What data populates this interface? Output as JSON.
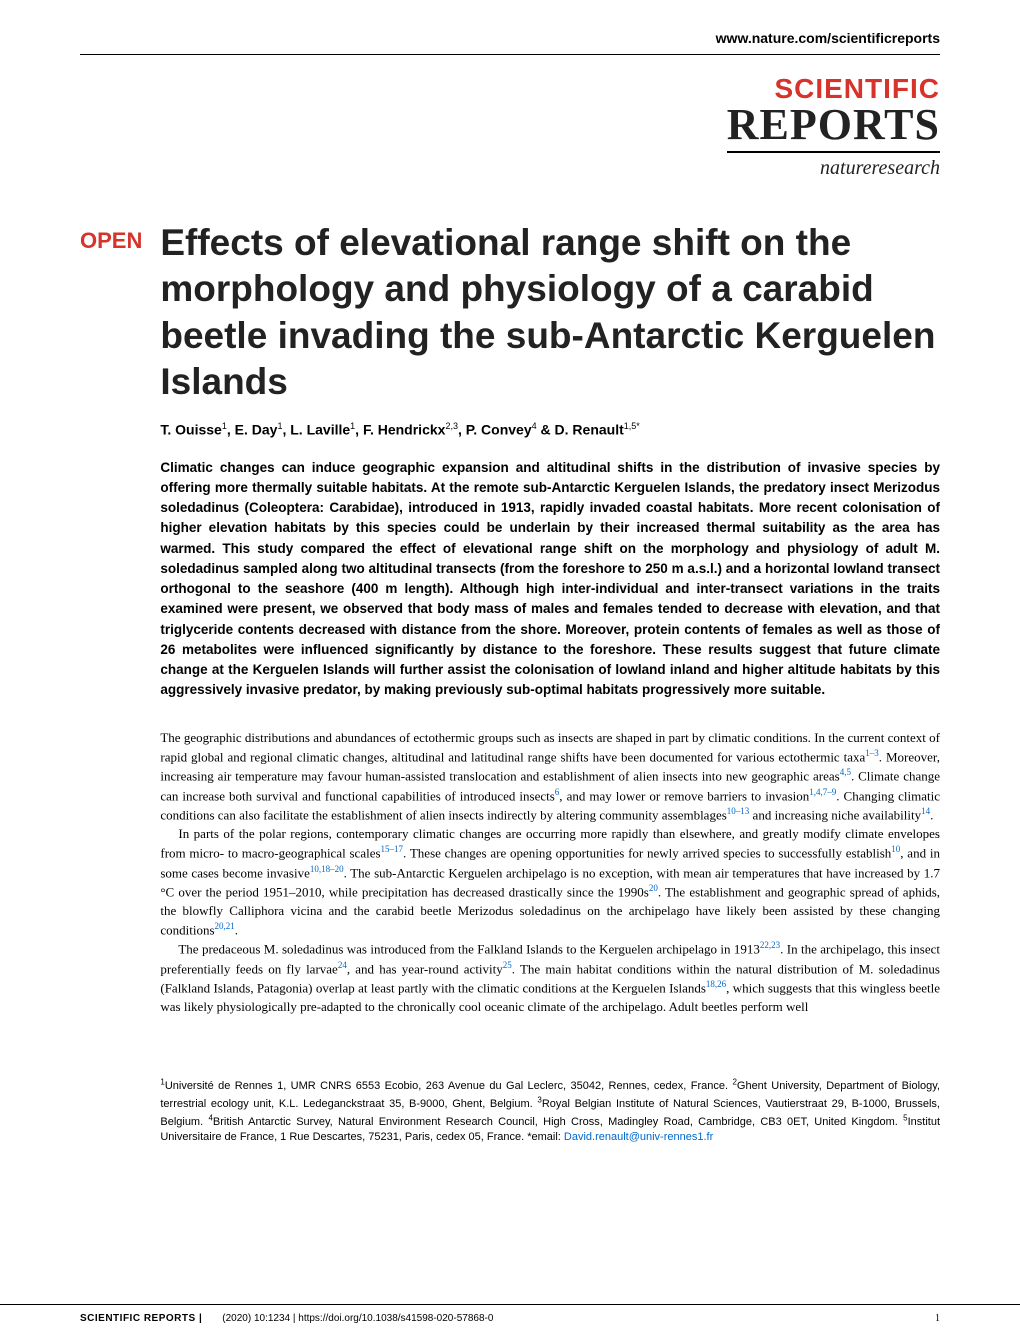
{
  "header": {
    "url": "www.nature.com/scientificreports",
    "logo_scientific": "SCIENTIFIC",
    "logo_reports": "REPORTS",
    "logo_nature": "natureresearch"
  },
  "article": {
    "open_badge": "OPEN",
    "title": "Effects of elevational range shift on the morphology and physiology of a carabid beetle invading the sub-Antarctic Kerguelen Islands",
    "authors_html": "T. Ouisse<sup>1</sup>, E. Day<sup>1</sup>, L. Laville<sup>1</sup>, F. Hendrickx<sup>2,3</sup>, P. Convey<sup>4</sup> & D. Renault<sup>1,5*</sup>",
    "abstract": "Climatic changes can induce geographic expansion and altitudinal shifts in the distribution of invasive species by offering more thermally suitable habitats. At the remote sub-Antarctic Kerguelen Islands, the predatory insect Merizodus soledadinus (Coleoptera: Carabidae), introduced in 1913, rapidly invaded coastal habitats. More recent colonisation of higher elevation habitats by this species could be underlain by their increased thermal suitability as the area has warmed. This study compared the effect of elevational range shift on the morphology and physiology of adult M. soledadinus sampled along two altitudinal transects (from the foreshore to 250 m a.s.l.) and a horizontal lowland transect orthogonal to the seashore (400 m length). Although high inter-individual and inter-transect variations in the traits examined were present, we observed that body mass of males and females tended to decrease with elevation, and that triglyceride contents decreased with distance from the shore. Moreover, protein contents of females as well as those of 26 metabolites were influenced significantly by distance to the foreshore. These results suggest that future climate change at the Kerguelen Islands will further assist the colonisation of lowland inland and higher altitude habitats by this aggressively invasive predator, by making previously sub-optimal habitats progressively more suitable."
  },
  "body_paragraphs": [
    "The geographic distributions and abundances of ectothermic groups such as insects are shaped in part by climatic conditions. In the current context of rapid global and regional climatic changes, altitudinal and latitudinal range shifts have been documented for various ectothermic taxa|1–3|. Moreover, increasing air temperature may favour human-assisted translocation and establishment of alien insects into new geographic areas|4,5|. Climate change can increase both survival and functional capabilities of introduced insects|6|, and may lower or remove barriers to invasion|1,4,7–9|. Changing climatic conditions can also facilitate the establishment of alien insects indirectly by altering community assemblages|10–13| and increasing niche availability|14|.",
    "In parts of the polar regions, contemporary climatic changes are occurring more rapidly than elsewhere, and greatly modify climate envelopes from micro- to macro-geographical scales|15–17|. These changes are opening opportunities for newly arrived species to successfully establish|10|, and in some cases become invasive|10,18–20|. The sub-Antarctic Kerguelen archipelago is no exception, with mean air temperatures that have increased by 1.7 °C over the period 1951–2010, while precipitation has decreased drastically since the 1990s|20|. The establishment and geographic spread of aphids, the blowfly Calliphora vicina and the carabid beetle Merizodus soledadinus on the archipelago have likely been assisted by these changing conditions|20,21|.",
    "The predaceous M. soledadinus was introduced from the Falkland Islands to the Kerguelen archipelago in 1913|22,23|. In the archipelago, this insect preferentially feeds on fly larvae|24|, and has year-round activity|25|. The main habitat conditions within the natural distribution of M. soledadinus (Falkland Islands, Patagonia) overlap at least partly with the climatic conditions at the Kerguelen Islands|18,26|, which suggests that this wingless beetle was likely physiologically pre-adapted to the chronically cool oceanic climate of the archipelago. Adult beetles perform well"
  ],
  "affiliations": "<sup>1</sup>Université de Rennes 1, UMR CNRS 6553 Ecobio, 263 Avenue du Gal Leclerc, 35042, Rennes, cedex, France. <sup>2</sup>Ghent University, Department of Biology, terrestrial ecology unit, K.L. Ledeganckstraat 35, B-9000, Ghent, Belgium. <sup>3</sup>Royal Belgian Institute of Natural Sciences, Vautierstraat 29, B-1000, Brussels, Belgium. <sup>4</sup>British Antarctic Survey, Natural Environment Research Council, High Cross, Madingley Road, Cambridge, CB3 0ET, United Kingdom. <sup>5</sup>Institut Universitaire de France, 1 Rue Descartes, 75231, Paris, cedex 05, France. *email: ",
  "email": "David.renault@univ-rennes1.fr",
  "footer": {
    "journal": "SCIENTIFIC REPORTS |",
    "citation": "(2020) 10:1234 | https://doi.org/10.1038/s41598-020-57868-0",
    "page": "1"
  },
  "colors": {
    "brand_red": "#d6342b",
    "link_blue": "#0066cc",
    "text": "#222222",
    "background": "#ffffff"
  }
}
